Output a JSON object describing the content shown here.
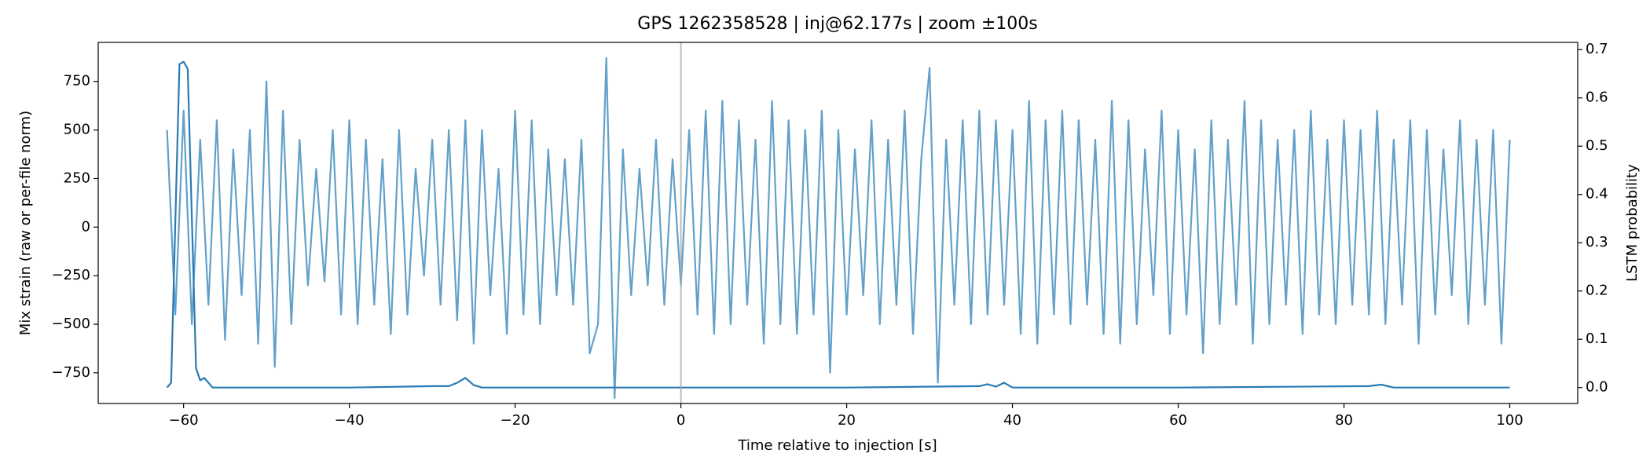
{
  "chart_data": {
    "type": "line",
    "title": "GPS 1262358528 | inj@62.177s | zoom ±100s",
    "xlabel": "Time relative to injection [s]",
    "ylabel": "Mix strain (raw or per-file norm)",
    "y2label": "LSTM probability",
    "xlim": [
      -70.3,
      108.2
    ],
    "ylim": [
      -908,
      951
    ],
    "y2lim": [
      -0.033,
      0.715
    ],
    "xticks": [
      {
        "value": -60,
        "label": "−60"
      },
      {
        "value": -40,
        "label": "−40"
      },
      {
        "value": -20,
        "label": "−20"
      },
      0,
      20,
      40,
      60,
      80,
      100
    ],
    "yticks": [
      {
        "value": -750,
        "label": "−750"
      },
      {
        "value": -500,
        "label": "−500"
      },
      {
        "value": -250,
        "label": "−250"
      },
      0,
      250,
      500,
      750
    ],
    "y2ticks": [
      {
        "value": 0,
        "label": "0.0"
      },
      0.1,
      0.2,
      0.3,
      0.4,
      0.5,
      0.6,
      0.7
    ],
    "vline": 0,
    "vline_color": "#aaaaaa",
    "series": [
      {
        "color": "#1f77b4",
        "opacity": 0.7,
        "axis": "y",
        "x": [
          -62,
          -61,
          -60,
          -59,
          -58,
          -57,
          -56,
          -55,
          -54,
          -53,
          -52,
          -51,
          -50,
          -49,
          -48,
          -47,
          -46,
          -45,
          -44,
          -43,
          -42,
          -41,
          -40,
          -39,
          -38,
          -37,
          -36,
          -35,
          -34,
          -33,
          -32,
          -31,
          -30,
          -29,
          -28,
          -27,
          -26,
          -25,
          -24,
          -23,
          -22,
          -21,
          -20,
          -19,
          -18,
          -17,
          -16,
          -15,
          -14,
          -13,
          -12,
          -11,
          -10,
          -9,
          -8,
          -7,
          -6,
          -5,
          -4,
          -3,
          -2,
          -1,
          0,
          1,
          2,
          3,
          4,
          5,
          6,
          7,
          8,
          9,
          10,
          11,
          12,
          13,
          14,
          15,
          16,
          17,
          18,
          19,
          20,
          21,
          22,
          23,
          24,
          25,
          26,
          27,
          28,
          29,
          30,
          31,
          32,
          33,
          34,
          35,
          36,
          37,
          38,
          39,
          40,
          41,
          42,
          43,
          44,
          45,
          46,
          47,
          48,
          49,
          50,
          51,
          52,
          53,
          54,
          55,
          56,
          57,
          58,
          59,
          60,
          61,
          62,
          63,
          64,
          65,
          66,
          67,
          68,
          69,
          70,
          71,
          72,
          73,
          74,
          75,
          76,
          77,
          78,
          79,
          80,
          81,
          82,
          83,
          84,
          85,
          86,
          87,
          88,
          89,
          90,
          91,
          92,
          93,
          94,
          95,
          96,
          97,
          98,
          99,
          100
        ],
        "values": [
          500,
          -450,
          600,
          -500,
          450,
          -400,
          550,
          -580,
          400,
          -350,
          500,
          -600,
          750,
          -720,
          600,
          -500,
          450,
          -300,
          300,
          -280,
          500,
          -450,
          550,
          -500,
          450,
          -400,
          350,
          -550,
          500,
          -450,
          300,
          -250,
          450,
          -400,
          500,
          -480,
          550,
          -600,
          500,
          -350,
          300,
          -550,
          600,
          -450,
          550,
          -500,
          400,
          -350,
          350,
          -400,
          450,
          -650,
          -500,
          870,
          -880,
          400,
          -350,
          300,
          -300,
          450,
          -400,
          350,
          -300,
          500,
          -450,
          600,
          -550,
          650,
          -500,
          550,
          -400,
          450,
          -600,
          650,
          -500,
          550,
          -550,
          500,
          -450,
          600,
          -750,
          500,
          -450,
          400,
          -350,
          550,
          -500,
          450,
          -400,
          600,
          -550,
          350,
          820,
          -800,
          450,
          -400,
          550,
          -500,
          600,
          -450,
          550,
          -400,
          500,
          -550,
          650,
          -600,
          550,
          -450,
          600,
          -500,
          550,
          -400,
          450,
          -550,
          650,
          -600,
          550,
          -500,
          400,
          -350,
          600,
          -550,
          500,
          -450,
          400,
          -650,
          550,
          -500,
          450,
          -400,
          650,
          -600,
          550,
          -500,
          450,
          -400,
          500,
          -550,
          600,
          -450,
          450,
          -500,
          550,
          -400,
          500,
          -450,
          600,
          -500,
          450,
          -400,
          550,
          -600,
          500,
          -450,
          400,
          -350,
          550,
          -500,
          450,
          -400,
          500,
          -600,
          450
        ]
      },
      {
        "color": "#2a7ab5",
        "opacity": 1,
        "axis": "y2",
        "x": [
          -62,
          -61.5,
          -60.5,
          -60,
          -59.5,
          -58.5,
          -58,
          -57.5,
          -56.5,
          -40,
          -30,
          -28,
          -27,
          -26,
          -25,
          -24,
          -10,
          0,
          20,
          36,
          37,
          38,
          39,
          40,
          60,
          83,
          84.5,
          86,
          100
        ],
        "values": [
          0,
          0.01,
          0.67,
          0.675,
          0.66,
          0.04,
          0.015,
          0.02,
          0,
          0,
          0.003,
          0.003,
          0.01,
          0.02,
          0.005,
          0,
          0,
          0,
          0,
          0.003,
          0.007,
          0.002,
          0.01,
          0,
          0,
          0.003,
          0.006,
          0,
          0
        ]
      }
    ]
  }
}
